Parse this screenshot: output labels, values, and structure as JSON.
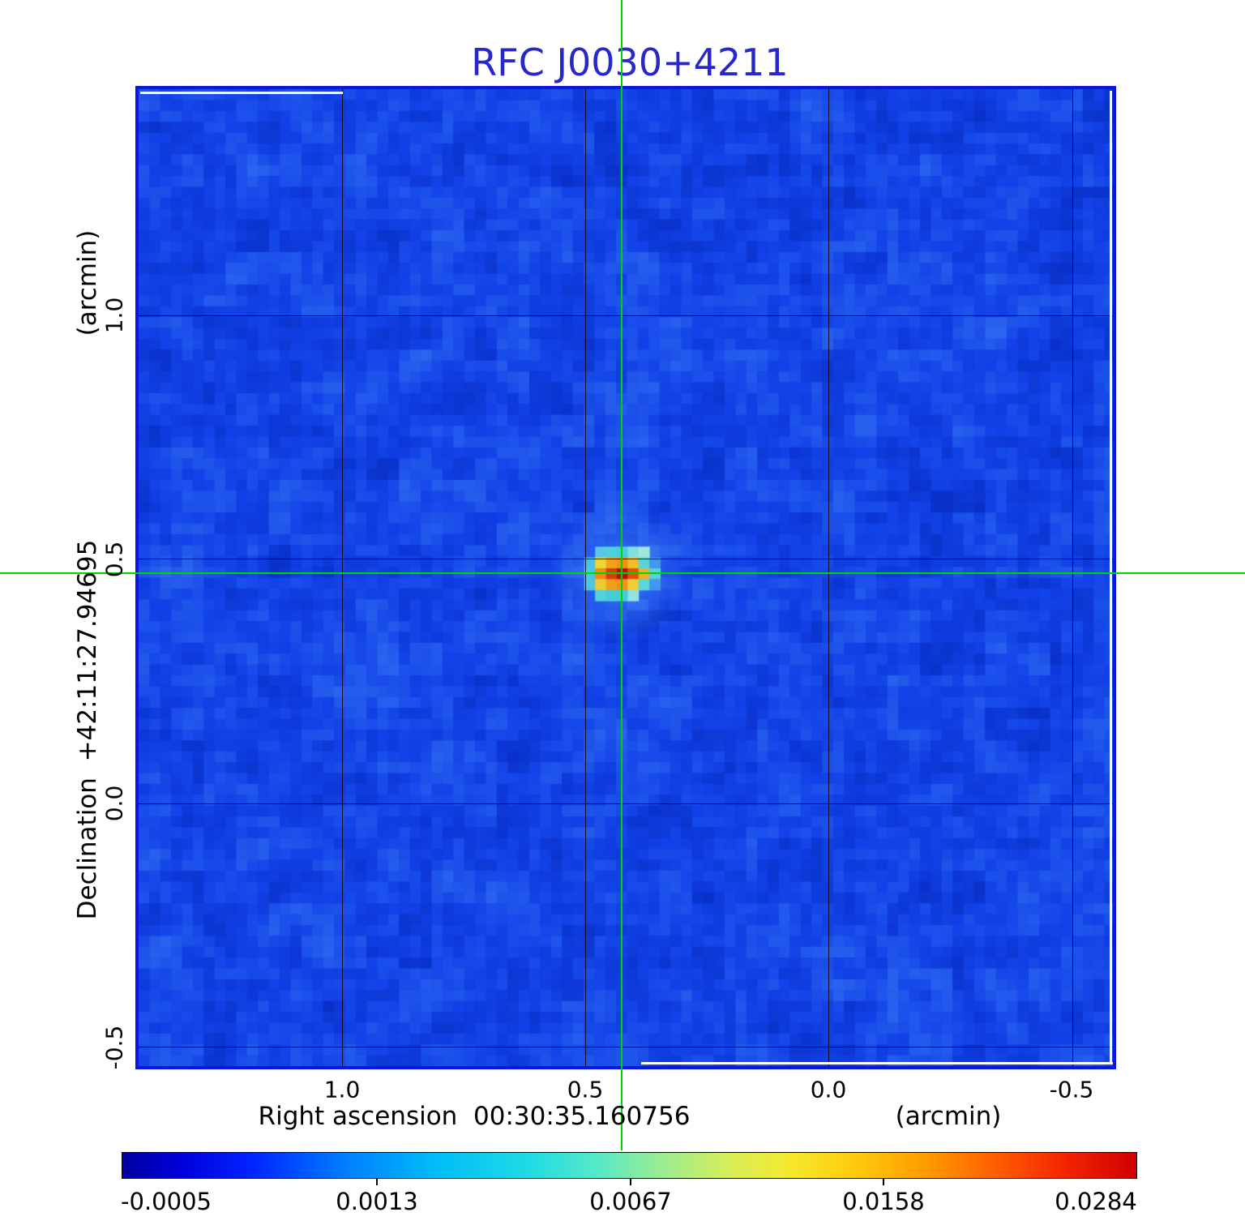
{
  "page": {
    "background": "#ffffff"
  },
  "chart_data": {
    "type": "heatmap",
    "title": "RFC J0030+4211",
    "title_color": "#2727cd",
    "description": "VLBI radio continuum map of source RFC J0030+4211: blue noise field with one compact bright source marked by a green crosshair",
    "x_axis": {
      "label": "Right ascension  00:30:35.160756",
      "unit": "(arcmin)",
      "tick_labels": [
        "1.0",
        "0.5",
        "0.0",
        "-0.5"
      ],
      "tick_values": [
        1.0,
        0.5,
        0.0,
        -0.5
      ],
      "range_arcmin": [
        1.43,
        -0.59
      ],
      "direction": "RA offset decreases to the right"
    },
    "y_axis": {
      "label": "Declination  +42:11:27.94695",
      "unit": "(arcmin)",
      "tick_labels": [
        "1.0",
        "0.5",
        "0.0",
        "-0.5"
      ],
      "tick_values": [
        1.0,
        0.5,
        0.0,
        -0.5
      ],
      "range_arcmin": [
        -0.53,
        1.46
      ]
    },
    "grid": true,
    "grid_color": "#000000",
    "colorbar": {
      "orientation": "horizontal",
      "tick_labels": [
        "-0.0005",
        "0.0013",
        "0.0067",
        "0.0158",
        "0.0284"
      ],
      "values": [
        -0.0005,
        0.0013,
        0.0067,
        0.0158,
        0.0284
      ],
      "scale": "non-linear",
      "colormap": "jet",
      "gradient_stops": [
        [
          0,
          "#0000a0"
        ],
        [
          6,
          "#0000dc"
        ],
        [
          13,
          "#0026ff"
        ],
        [
          22,
          "#007eff"
        ],
        [
          31,
          "#00bdf8"
        ],
        [
          40,
          "#1fdbe4"
        ],
        [
          47,
          "#58e9c7"
        ],
        [
          53,
          "#99ed92"
        ],
        [
          60,
          "#d8ee57"
        ],
        [
          66,
          "#f6e82c"
        ],
        [
          72,
          "#ffcc0e"
        ],
        [
          79,
          "#ff9d00"
        ],
        [
          86,
          "#ff5f00"
        ],
        [
          93,
          "#f42400"
        ],
        [
          100,
          "#cf0000"
        ]
      ]
    },
    "crosshair": {
      "color": "#00d400",
      "ra_offset_arcmin": 0.42,
      "dec_offset_arcmin": 0.47
    },
    "source": {
      "name": "RFC J0030+4211",
      "peak_value": 0.0284,
      "peak_color": "#b21210",
      "pixel_matrix": [
        [
          null,
          "#59c6e8",
          "#4fd0de",
          "#49cdd9",
          "#82e0dc",
          "#a2e6de",
          null
        ],
        [
          "#4cc2e2",
          "#ecd63a",
          "#f2a31c",
          "#f09015",
          "#f2bc2a",
          "#5ad4d8",
          "#4496ee"
        ],
        [
          "#46c9e3",
          "#f08c13",
          "#dd3b0d",
          "#b21210",
          "#e2520e",
          "#f0b026",
          "#57d2d8"
        ],
        [
          "#4ec5e0",
          "#eecb33",
          "#f2a01c",
          "#f09318",
          "#efcf37",
          "#5cd7d5",
          "#4496ee"
        ],
        [
          null,
          "#51d2dc",
          "#48cdd8",
          "#46cbd7",
          "#90e3de",
          null,
          null
        ]
      ]
    },
    "noise": {
      "seed": 11,
      "grid": 90,
      "dark": "#0120a6",
      "mid": "#1242e8",
      "light": "#3c7cf4",
      "glow": "rgba(135,220,250,0.55)"
    },
    "frame_color": "#0b17dd"
  }
}
